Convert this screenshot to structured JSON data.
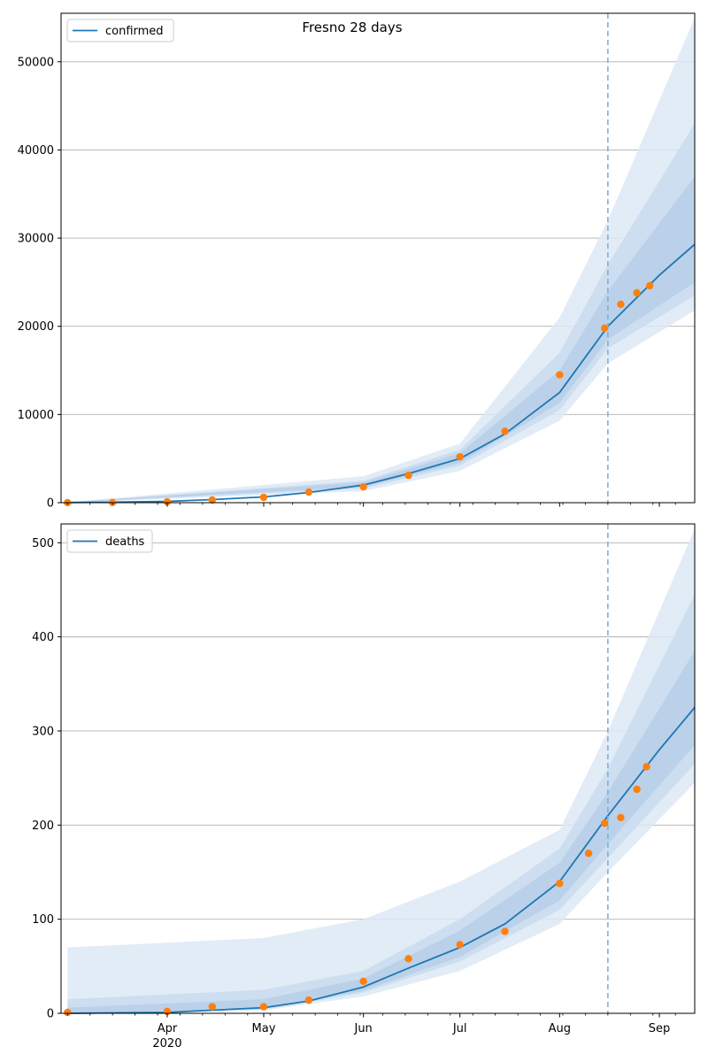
{
  "figure_title": "Fresno 28 days",
  "chart_data": [
    {
      "type": "line",
      "panel": "top",
      "legend": [
        "confirmed"
      ],
      "legend_position": "top-left",
      "grid": "y",
      "ylim": [
        0,
        55500
      ],
      "yticks": [
        0,
        10000,
        20000,
        30000,
        40000,
        50000
      ],
      "forecast_start": "2020-08-16",
      "series": [
        {
          "name": "confirmed",
          "kind": "model-median",
          "color": "#1f77b4",
          "x": [
            "2020-03-01",
            "2020-03-15",
            "2020-04-01",
            "2020-04-15",
            "2020-05-01",
            "2020-05-15",
            "2020-06-01",
            "2020-06-15",
            "2020-07-01",
            "2020-07-15",
            "2020-08-01",
            "2020-08-16",
            "2020-09-01",
            "2020-09-12"
          ],
          "y": [
            20,
            60,
            150,
            350,
            650,
            1150,
            2000,
            3300,
            5000,
            7800,
            12500,
            20000,
            25800,
            29300
          ]
        },
        {
          "kind": "observed",
          "color": "#ff7f0e",
          "x": [
            "2020-03-01",
            "2020-03-15",
            "2020-04-01",
            "2020-04-15",
            "2020-05-01",
            "2020-05-15",
            "2020-06-01",
            "2020-06-15",
            "2020-07-01",
            "2020-07-15",
            "2020-08-01",
            "2020-08-15",
            "2020-08-20",
            "2020-08-25",
            "2020-08-29"
          ],
          "y": [
            5,
            20,
            100,
            300,
            600,
            1200,
            1800,
            3100,
            5200,
            8100,
            14500,
            19800,
            22500,
            23800,
            24600
          ]
        }
      ],
      "bands": [
        {
          "x": [
            "2020-03-01",
            "2020-06-01",
            "2020-07-01",
            "2020-08-01",
            "2020-08-16",
            "2020-09-12"
          ],
          "lower": [
            0,
            1300,
            3600,
            9300,
            15800,
            21800
          ],
          "upper": [
            60,
            3000,
            6700,
            21000,
            32000,
            55000
          ]
        },
        {
          "x": [
            "2020-03-01",
            "2020-06-01",
            "2020-07-01",
            "2020-08-01",
            "2020-08-16",
            "2020-09-12"
          ],
          "lower": [
            0,
            1600,
            4200,
            10500,
            17500,
            23500
          ],
          "upper": [
            40,
            2500,
            6000,
            17000,
            27000,
            43000
          ]
        },
        {
          "x": [
            "2020-03-01",
            "2020-06-01",
            "2020-07-01",
            "2020-08-01",
            "2020-08-16",
            "2020-09-12"
          ],
          "lower": [
            0,
            1800,
            4500,
            11300,
            18500,
            25000
          ],
          "upper": [
            30,
            2300,
            5600,
            15000,
            24000,
            37000
          ]
        }
      ]
    },
    {
      "type": "line",
      "panel": "bottom",
      "legend": [
        "deaths"
      ],
      "legend_position": "top-left",
      "grid": "y",
      "ylim": [
        0,
        520
      ],
      "yticks": [
        0,
        100,
        200,
        300,
        400,
        500
      ],
      "xticks": [
        "Apr\n2020",
        "May",
        "Jun",
        "Jul",
        "Aug",
        "Sep"
      ],
      "forecast_start": "2020-08-16",
      "series": [
        {
          "name": "deaths",
          "kind": "model-median",
          "color": "#1f77b4",
          "x": [
            "2020-03-01",
            "2020-04-01",
            "2020-05-01",
            "2020-05-15",
            "2020-06-01",
            "2020-06-15",
            "2020-07-01",
            "2020-07-15",
            "2020-08-01",
            "2020-08-16",
            "2020-09-01",
            "2020-09-12"
          ],
          "y": [
            0,
            1,
            6,
            13,
            28,
            48,
            70,
            95,
            140,
            210,
            280,
            325
          ]
        },
        {
          "kind": "observed",
          "color": "#ff7f0e",
          "x": [
            "2020-03-01",
            "2020-04-01",
            "2020-04-15",
            "2020-05-01",
            "2020-05-15",
            "2020-06-01",
            "2020-06-15",
            "2020-07-01",
            "2020-07-15",
            "2020-08-01",
            "2020-08-10",
            "2020-08-15",
            "2020-08-20",
            "2020-08-25",
            "2020-08-28"
          ],
          "y": [
            1,
            2,
            7,
            7,
            14,
            34,
            58,
            73,
            87,
            138,
            170,
            202,
            208,
            238,
            262
          ]
        }
      ],
      "bands": [
        {
          "x": [
            "2020-03-01",
            "2020-05-01",
            "2020-06-01",
            "2020-07-01",
            "2020-08-01",
            "2020-08-16",
            "2020-09-12"
          ],
          "lower": [
            0,
            3,
            18,
            45,
            95,
            150,
            245
          ],
          "upper": [
            70,
            80,
            100,
            140,
            195,
            300,
            515
          ]
        },
        {
          "x": [
            "2020-03-01",
            "2020-05-01",
            "2020-06-01",
            "2020-07-01",
            "2020-08-01",
            "2020-08-16",
            "2020-09-12"
          ],
          "lower": [
            0,
            4,
            22,
            55,
            110,
            165,
            265
          ],
          "upper": [
            15,
            25,
            45,
            100,
            175,
            260,
            445
          ]
        },
        {
          "x": [
            "2020-03-01",
            "2020-05-01",
            "2020-06-01",
            "2020-07-01",
            "2020-08-01",
            "2020-08-16",
            "2020-09-12"
          ],
          "lower": [
            0,
            5,
            24,
            60,
            120,
            180,
            285
          ],
          "upper": [
            6,
            15,
            37,
            88,
            160,
            235,
            385
          ]
        }
      ]
    }
  ]
}
